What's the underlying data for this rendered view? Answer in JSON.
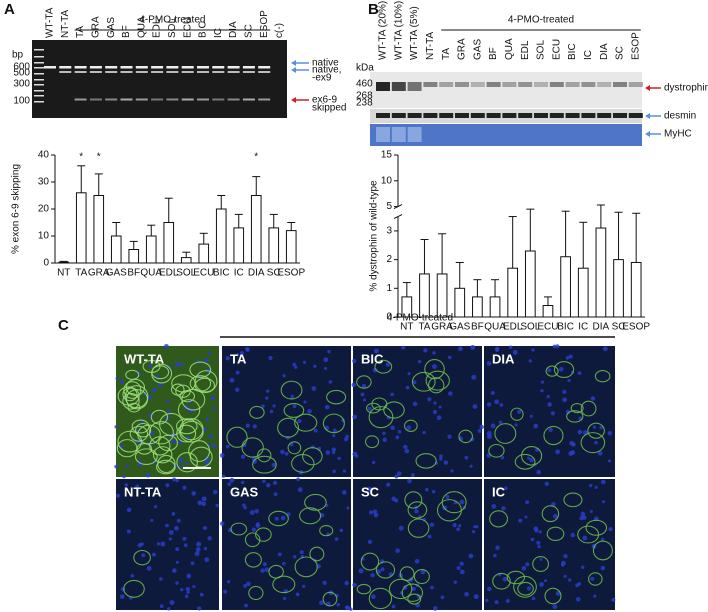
{
  "panels": {
    "a": "A",
    "b": "B",
    "c": "C"
  },
  "gel_a": {
    "lanes": [
      "WT-TA",
      "NT-TA",
      "TA",
      "GRA",
      "GAS",
      "BF",
      "QUA",
      "EDL",
      "SOL",
      "ECU",
      "BIC",
      "IC",
      "DIA",
      "SC",
      "ESOP",
      "c(-)"
    ],
    "group_label": "4-PMO-treated",
    "size_unit": "bp",
    "sizes": [
      600,
      500,
      300,
      100
    ],
    "band_labels": [
      {
        "lines": [
          "native"
        ]
      },
      {
        "lines": [
          "native,",
          "-ex9"
        ]
      },
      {
        "lines": [
          "ex6-9",
          "skipped"
        ]
      }
    ]
  },
  "gel_b": {
    "lanes": [
      "WT-TA (20%)",
      "WT-TA (10%)",
      "WT-TA (5%)",
      "NT-TA",
      "TA",
      "GRA",
      "GAS",
      "BF",
      "QUA",
      "EDL",
      "SOL",
      "ECU",
      "BIC",
      "IC",
      "DIA",
      "SC",
      "ESOP"
    ],
    "group_label": "4-PMO-treated",
    "size_unit": "kDa",
    "sizes": [
      460,
      268,
      238
    ],
    "band_labels": [
      "dystrophin",
      "desmin",
      "MyHC"
    ]
  },
  "chart_data": [
    {
      "type": "bar",
      "y_label": "% exon 6-9 skipping",
      "categories": [
        "NT",
        "TA",
        "GRA",
        "GAS",
        "BF",
        "QUA",
        "EDL",
        "SOL",
        "ECU",
        "BIC",
        "IC",
        "DIA",
        "SC",
        "ESOP"
      ],
      "values": [
        0.3,
        26,
        25,
        10,
        5,
        10,
        15,
        2,
        7,
        20,
        13,
        25,
        13,
        12
      ],
      "errors": [
        0.3,
        10,
        8,
        5,
        3,
        4,
        9,
        2,
        4,
        5,
        5,
        7,
        5,
        3
      ],
      "annotations": [
        {
          "category": "TA",
          "text": "*"
        },
        {
          "category": "GRA",
          "text": "*"
        },
        {
          "category": "DIA",
          "text": "*"
        }
      ],
      "ylim": [
        0,
        40
      ],
      "yticks": [
        0,
        10,
        20,
        30,
        40
      ],
      "color": "#ffffff"
    },
    {
      "type": "bar",
      "y_label": "% dystrophin of wild-type",
      "categories": [
        "NT",
        "TA",
        "GRA",
        "GAS",
        "BF",
        "QUA",
        "EDL",
        "SOL",
        "ECU",
        "BIC",
        "IC",
        "DIA",
        "SC",
        "ESOP"
      ],
      "values": [
        0.7,
        1.5,
        1.5,
        1.0,
        0.7,
        0.7,
        1.7,
        2.3,
        0.4,
        2.1,
        1.7,
        3.1,
        2.0,
        1.9
      ],
      "errors": [
        0.5,
        1.2,
        1.4,
        0.9,
        0.6,
        0.6,
        1.8,
        2.2,
        0.3,
        2.0,
        1.6,
        2.2,
        1.9,
        1.8
      ],
      "ylim": [
        0,
        15
      ],
      "axis_break": [
        3.5,
        5
      ],
      "yticks": [
        0,
        1,
        2,
        3,
        5,
        10,
        15
      ],
      "color": "#ffffff"
    }
  ],
  "panel_c": {
    "group_label": "4-PMO-treated",
    "images": [
      "WT-TA",
      "TA",
      "BIC",
      "DIA",
      "NT-TA",
      "GAS",
      "SC",
      "IC"
    ]
  }
}
